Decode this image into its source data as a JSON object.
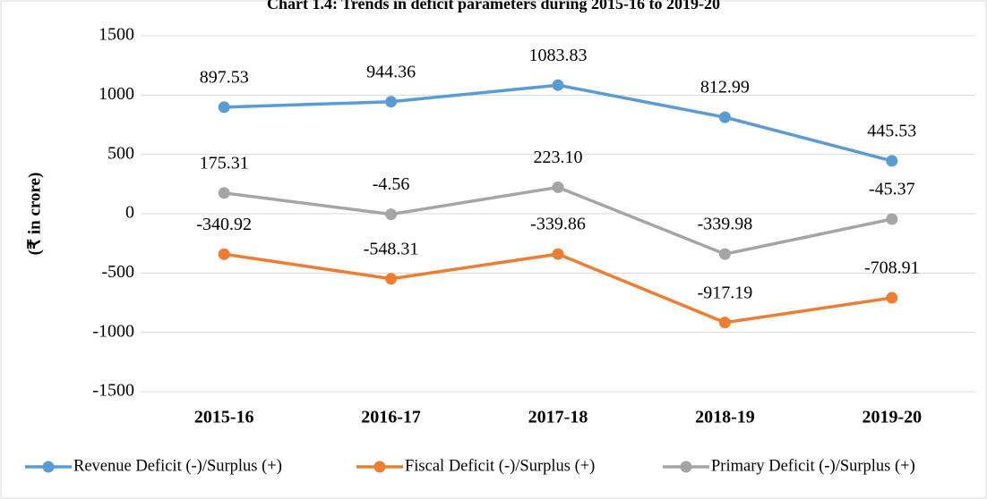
{
  "chart_data": {
    "type": "line",
    "title": "Chart 1.4: Trends in deficit parameters during 2015-16 to 2019-20",
    "y_label": "(₹ in crore)",
    "categories": [
      "2015-16",
      "2016-17",
      "2017-18",
      "2018-19",
      "2019-20"
    ],
    "series": [
      {
        "name": "Revenue Deficit (-)/Surplus (+)",
        "color": "#5b9bd5",
        "values": [
          897.53,
          944.36,
          1083.83,
          812.99,
          445.53
        ],
        "value_labels": [
          "897.53",
          "944.36",
          "1083.83",
          "812.99",
          "445.53"
        ]
      },
      {
        "name": "Fiscal Deficit (-)/Surplus (+)",
        "color": "#ed7d31",
        "values": [
          -340.92,
          -548.31,
          -339.86,
          -917.19,
          -708.91
        ],
        "value_labels": [
          "-340.92",
          "-548.31",
          "-339.86",
          "-917.19",
          "-708.91"
        ]
      },
      {
        "name": "Primary Deficit (-)/Surplus (+)",
        "color": "#a5a5a5",
        "values": [
          175.31,
          -4.56,
          223.1,
          -339.98,
          -45.37
        ],
        "value_labels": [
          "175.31",
          "-4.56",
          "223.10",
          "-339.98",
          "-45.37"
        ]
      }
    ],
    "ylim": [
      -1500,
      1500
    ],
    "yticks": [
      -1500,
      -1000,
      -500,
      0,
      500,
      1000,
      1500
    ],
    "grid": true,
    "legend": "bottom"
  }
}
